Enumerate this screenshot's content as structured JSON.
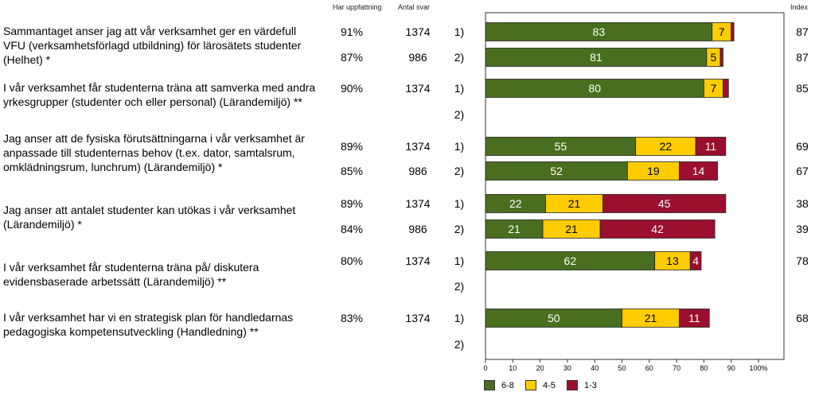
{
  "headers": {
    "pct": "Har uppfattning",
    "count": "Antal svar",
    "index": "Index"
  },
  "questions": [
    {
      "text": "Sammantaget anser jag att vår verksamhet ger en värdefull VFU (verksamhetsförlagd utbildning) för lärosätets studenter (Helhet) *"
    },
    {
      "text": "I vår verksamhet får studenterna träna att samverka med andra yrkesgrupper (studenter och eller personal) (Lärandemiljö) **"
    },
    {
      "text": "Jag anser att de fysiska förutsättningarna i vår verksamhet är anpassade till studenternas behov (t.ex. dator, samtalsrum, omklädningsrum, lunchrum) (Lärandemiljö) *"
    },
    {
      "text": "Jag anser att antalet studenter kan utökas i vår verksamhet (Lärandemiljö) *"
    },
    {
      "text": "I vår verksamhet får studenterna träna på/ diskutera evidensbaserade arbetssätt (Lärandemiljö) **"
    },
    {
      "text": "I vår verksamhet har vi en strategisk plan för handledarnas pedagogiska kompetensutveckling (Handledning) **"
    }
  ],
  "rows": [
    {
      "group": "1)",
      "pct": "91%",
      "count": "1374",
      "index": "87"
    },
    {
      "group": "2)",
      "pct": "87%",
      "count": "986",
      "index": "87"
    },
    {
      "group": "1)",
      "pct": "90%",
      "count": "1374",
      "index": "85"
    },
    {
      "group": "2)",
      "pct": "",
      "count": "",
      "index": ""
    },
    {
      "group": "1)",
      "pct": "89%",
      "count": "1374",
      "index": "69"
    },
    {
      "group": "2)",
      "pct": "85%",
      "count": "986",
      "index": "67"
    },
    {
      "group": "1)",
      "pct": "89%",
      "count": "1374",
      "index": "38"
    },
    {
      "group": "2)",
      "pct": "84%",
      "count": "986",
      "index": "39"
    },
    {
      "group": "1)",
      "pct": "80%",
      "count": "1374",
      "index": "78"
    },
    {
      "group": "2)",
      "pct": "",
      "count": "",
      "index": ""
    },
    {
      "group": "1)",
      "pct": "83%",
      "count": "1374",
      "index": "68"
    },
    {
      "group": "2)",
      "pct": "",
      "count": "",
      "index": ""
    }
  ],
  "colors": {
    "high": "#4a6e1f",
    "mid": "#ffcc00",
    "low": "#9b0f2e"
  },
  "chart_data": {
    "type": "bar",
    "orientation": "horizontal",
    "stacked": true,
    "xlim": [
      0,
      100
    ],
    "x_ticks": [
      "0",
      "10",
      "20",
      "30",
      "40",
      "50",
      "60",
      "70",
      "80",
      "90",
      "100%"
    ],
    "legend_position": "bottom",
    "categories": [
      "Q1 1)",
      "Q1 2)",
      "Q2 1)",
      "Q2 2)",
      "Q3 1)",
      "Q3 2)",
      "Q4 1)",
      "Q4 2)",
      "Q5 1)",
      "Q5 2)",
      "Q6 1)",
      "Q6 2)"
    ],
    "series": [
      {
        "name": "6-8",
        "values": [
          83,
          81,
          80,
          null,
          55,
          52,
          22,
          21,
          62,
          null,
          50,
          null
        ]
      },
      {
        "name": "4-5",
        "values": [
          7,
          5,
          7,
          null,
          22,
          19,
          21,
          21,
          13,
          null,
          21,
          null
        ]
      },
      {
        "name": "1-3",
        "values": [
          1,
          1,
          2,
          null,
          11,
          14,
          45,
          42,
          4,
          null,
          11,
          null
        ]
      }
    ],
    "labels": [
      [
        "83",
        "7",
        ""
      ],
      [
        "81",
        "5",
        ""
      ],
      [
        "80",
        "7",
        ""
      ],
      [
        "",
        "",
        ""
      ],
      [
        "55",
        "22",
        "11"
      ],
      [
        "52",
        "19",
        "14"
      ],
      [
        "22",
        "21",
        "45"
      ],
      [
        "21",
        "21",
        "42"
      ],
      [
        "62",
        "13",
        "4"
      ],
      [
        "",
        "",
        ""
      ],
      [
        "50",
        "21",
        "11"
      ],
      [
        "",
        "",
        ""
      ]
    ]
  }
}
